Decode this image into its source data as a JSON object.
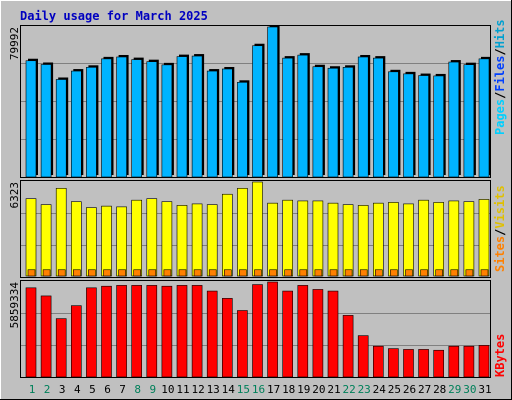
{
  "title": "Daily usage for March 2025",
  "colors": {
    "background": "#c0c0c0",
    "title": "#0000c0",
    "hits": "#00a0d0",
    "files": "#0040ff",
    "pages": "#00d0ff",
    "visits": "#e0c000",
    "sites": "#ff8000",
    "kbytes": "#ff0000",
    "hits_bar": "#00b4ff",
    "visits_bar": "#ffff00",
    "sites_bar": "#ff8000",
    "kbytes_bar": "#ff0000",
    "weekday_label": "#000000",
    "weekend_label": "#00805a"
  },
  "legend": {
    "panel1": {
      "pages": "Pages",
      "sep1": "/",
      "files": "Files",
      "sep2": "/",
      "hits": "Hits"
    },
    "panel2": {
      "sites": "Sites",
      "sep1": "/",
      "visits": "Visits"
    },
    "panel3": {
      "kbytes": "KBytes"
    }
  },
  "axis_max": {
    "hits": "79992",
    "visits": "6323",
    "kbytes": "5859334"
  },
  "chart_data": [
    {
      "type": "bar",
      "title": "Daily usage for March 2025",
      "categories": [
        "1",
        "2",
        "3",
        "4",
        "5",
        "6",
        "7",
        "8",
        "9",
        "10",
        "11",
        "12",
        "13",
        "14",
        "15",
        "16",
        "17",
        "18",
        "19",
        "20",
        "21",
        "22",
        "23",
        "24",
        "25",
        "26",
        "27",
        "28",
        "29",
        "30",
        "31"
      ],
      "weekend_days": [
        "1",
        "2",
        "8",
        "9",
        "15",
        "16",
        "22",
        "23",
        "29",
        "30"
      ],
      "ylim": [
        0,
        79992
      ],
      "series": [
        {
          "name": "Hits",
          "values": [
            62000,
            60000,
            52000,
            56500,
            58500,
            63000,
            64000,
            62600,
            61500,
            59800,
            64200,
            64500,
            56500,
            57600,
            50500,
            70000,
            80000,
            63400,
            65000,
            58800,
            58000,
            58500,
            64000,
            63400,
            56100,
            55000,
            54100,
            53900,
            61300,
            59900,
            63000
          ]
        }
      ]
    },
    {
      "type": "bar",
      "categories": [
        "1",
        "2",
        "3",
        "4",
        "5",
        "6",
        "7",
        "8",
        "9",
        "10",
        "11",
        "12",
        "13",
        "14",
        "15",
        "16",
        "17",
        "18",
        "19",
        "20",
        "21",
        "22",
        "23",
        "24",
        "25",
        "26",
        "27",
        "28",
        "29",
        "30",
        "31"
      ],
      "ylim": [
        0,
        6323
      ],
      "series": [
        {
          "name": "Visits",
          "values": [
            5200,
            4800,
            5900,
            5000,
            4600,
            4700,
            4650,
            5100,
            5200,
            5000,
            4750,
            4850,
            4800,
            5500,
            5900,
            6323,
            4900,
            5100,
            5050,
            5050,
            4900,
            4800,
            4750,
            4900,
            4950,
            4850,
            5100,
            4950,
            5050,
            5000,
            5150
          ]
        },
        {
          "name": "Sites",
          "values": [
            420,
            420,
            420,
            420,
            420,
            420,
            420,
            420,
            420,
            420,
            420,
            420,
            420,
            420,
            420,
            420,
            420,
            420,
            420,
            420,
            420,
            420,
            420,
            420,
            420,
            420,
            420,
            420,
            420,
            420,
            420
          ]
        }
      ]
    },
    {
      "type": "bar",
      "categories": [
        "1",
        "2",
        "3",
        "4",
        "5",
        "6",
        "7",
        "8",
        "9",
        "10",
        "11",
        "12",
        "13",
        "14",
        "15",
        "16",
        "17",
        "18",
        "19",
        "20",
        "21",
        "22",
        "23",
        "24",
        "25",
        "26",
        "27",
        "28",
        "29",
        "30",
        "31"
      ],
      "ylim": [
        0,
        5859334
      ],
      "series": [
        {
          "name": "KBytes",
          "values": [
            5500000,
            5000000,
            3600000,
            4400000,
            5500000,
            5600000,
            5650000,
            5650000,
            5650000,
            5600000,
            5650000,
            5650000,
            5300000,
            4850000,
            4100000,
            5700000,
            5859334,
            5300000,
            5650000,
            5400000,
            5300000,
            3800000,
            2550000,
            1900000,
            1750000,
            1700000,
            1700000,
            1650000,
            1900000,
            1900000,
            1950000
          ]
        }
      ]
    }
  ]
}
